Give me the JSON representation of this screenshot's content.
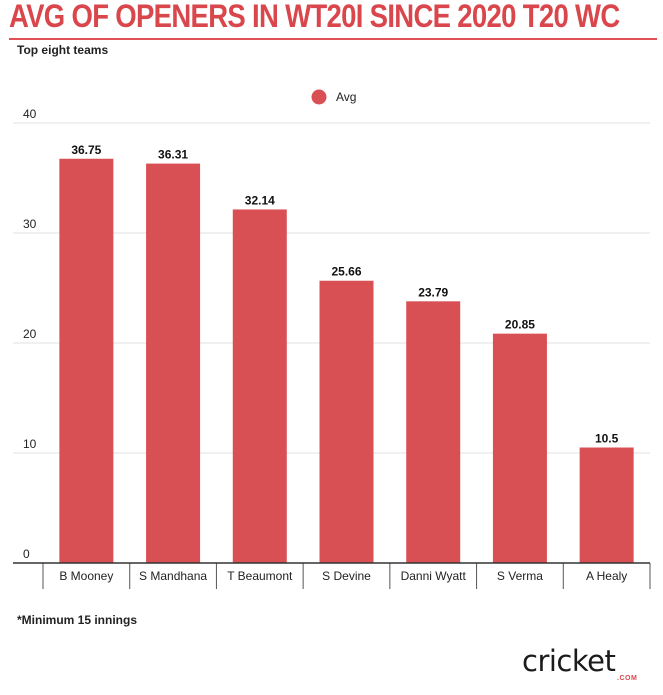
{
  "header": {
    "title": "AVG OF OPENERS IN WT20I SINCE 2020 T20 WC",
    "subtitle": "Top eight teams"
  },
  "footnote": "*Minimum 15 innings",
  "brand": {
    "name": "cricket",
    "sub": ".COM"
  },
  "colors": {
    "bar": "#d95054",
    "title": "#d9464b",
    "grid": "#e0e0e0"
  },
  "chart_data": {
    "type": "bar",
    "title": "AVG OF OPENERS IN WT20I SINCE 2020 T20 WC",
    "subtitle": "Top eight teams",
    "categories": [
      "B Mooney",
      "S Mandhana",
      "T Beaumont",
      "S Devine",
      "Danni Wyatt",
      "S Verma",
      "A Healy"
    ],
    "series": [
      {
        "name": "Avg",
        "values": [
          36.75,
          36.31,
          32.14,
          25.66,
          23.79,
          20.85,
          10.5
        ]
      }
    ],
    "value_labels": [
      "36.75",
      "36.31",
      "32.14",
      "25.66",
      "23.79",
      "20.85",
      "10.5"
    ],
    "ylim": [
      0,
      40
    ],
    "yticks": [
      0,
      10,
      20,
      30,
      40
    ],
    "grid": true,
    "legend": "top-center",
    "xlabel": "",
    "ylabel": ""
  }
}
